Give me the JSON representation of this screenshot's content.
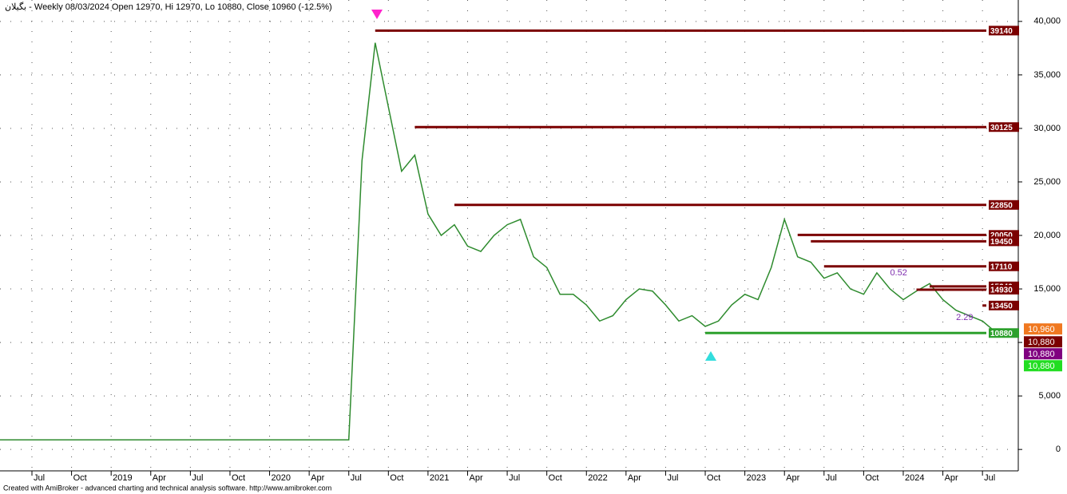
{
  "chart_data": {
    "type": "line",
    "title": "بگیلان - Weekly 08/03/2024 Open 12970, Hi 12970, Lo 10880, Close 10960 (-12.5%)",
    "footer": "Created with AmiBroker - advanced charting and technical analysis software. http://www.amibroker.com",
    "series": [
      {
        "name": "Close",
        "color": "#2e8b2e",
        "x": [
          "2018-04",
          "2018-05",
          "2018-06",
          "2018-07",
          "2018-08",
          "2018-09",
          "2018-10",
          "2018-11",
          "2018-12",
          "2019-01",
          "2019-02",
          "2019-03",
          "2019-04",
          "2019-05",
          "2019-06",
          "2019-07",
          "2019-08",
          "2019-09",
          "2019-10",
          "2019-11",
          "2019-12",
          "2020-01",
          "2020-02",
          "2020-03",
          "2020-04",
          "2020-05",
          "2020-06",
          "2020-07",
          "2020-08",
          "2020-09",
          "2020-10",
          "2020-11",
          "2020-12",
          "2021-01",
          "2021-02",
          "2021-03",
          "2021-04",
          "2021-05",
          "2021-06",
          "2021-07",
          "2021-08",
          "2021-09",
          "2021-10",
          "2021-11",
          "2021-12",
          "2022-01",
          "2022-02",
          "2022-03",
          "2022-04",
          "2022-05",
          "2022-06",
          "2022-07",
          "2022-08",
          "2022-09",
          "2022-10",
          "2022-11",
          "2022-12",
          "2023-01",
          "2023-02",
          "2023-03",
          "2023-04",
          "2023-05",
          "2023-06",
          "2023-07",
          "2023-08",
          "2023-09",
          "2023-10",
          "2023-11",
          "2023-12",
          "2024-01",
          "2024-02",
          "2024-03",
          "2024-04",
          "2024-05",
          "2024-06",
          "2024-07",
          "2024-08"
        ],
        "values": [
          900,
          900,
          900,
          900,
          900,
          900,
          900,
          900,
          900,
          900,
          900,
          900,
          900,
          900,
          900,
          900,
          900,
          900,
          900,
          900,
          900,
          900,
          900,
          900,
          900,
          900,
          900,
          900,
          27000,
          38000,
          32000,
          26000,
          27500,
          22000,
          20000,
          21000,
          19000,
          18500,
          20000,
          21000,
          21500,
          18000,
          17000,
          14500,
          14500,
          13500,
          12000,
          12500,
          14000,
          15000,
          14800,
          13500,
          12000,
          12500,
          11500,
          12000,
          13500,
          14500,
          14000,
          17000,
          21500,
          18000,
          17500,
          16000,
          16500,
          15000,
          14500,
          16500,
          15000,
          14000,
          14800,
          15500,
          14000,
          13000,
          12500,
          12000,
          10960
        ]
      }
    ],
    "ylim": [
      -2000,
      42000
    ],
    "yticks": [
      0,
      {
        "value": 5000,
        "label": "5,000"
      },
      {
        "value": 10000,
        "label": "10,000"
      },
      {
        "value": 15000,
        "label": "15,000"
      },
      {
        "value": 20000,
        "label": "20,000"
      },
      {
        "value": 25000,
        "label": "25,000"
      },
      {
        "value": 30000,
        "label": "30,000"
      },
      {
        "value": 35000,
        "label": "35,000"
      },
      {
        "value": 40000,
        "label": "40,000"
      }
    ],
    "xlim": [
      "2018-04",
      "2024-10"
    ],
    "xticks": [
      {
        "value": "2018-07",
        "label": "Jul"
      },
      {
        "value": "2018-10",
        "label": "Oct"
      },
      {
        "value": "2019-01",
        "label": "2019"
      },
      {
        "value": "2019-04",
        "label": "Apr"
      },
      {
        "value": "2019-07",
        "label": "Jul"
      },
      {
        "value": "2019-10",
        "label": "Oct"
      },
      {
        "value": "2020-01",
        "label": "2020"
      },
      {
        "value": "2020-04",
        "label": "Apr"
      },
      {
        "value": "2020-07",
        "label": "Jul"
      },
      {
        "value": "2020-10",
        "label": "Oct"
      },
      {
        "value": "2021-01",
        "label": "2021"
      },
      {
        "value": "2021-04",
        "label": "Apr"
      },
      {
        "value": "2021-07",
        "label": "Jul"
      },
      {
        "value": "2021-10",
        "label": "Oct"
      },
      {
        "value": "2022-01",
        "label": "2022"
      },
      {
        "value": "2022-04",
        "label": "Apr"
      },
      {
        "value": "2022-07",
        "label": "Jul"
      },
      {
        "value": "2022-10",
        "label": "Oct"
      },
      {
        "value": "2023-01",
        "label": "2023"
      },
      {
        "value": "2023-04",
        "label": "Apr"
      },
      {
        "value": "2023-07",
        "label": "Jul"
      },
      {
        "value": "2023-10",
        "label": "Oct"
      },
      {
        "value": "2024-01",
        "label": "2024"
      },
      {
        "value": "2024-04",
        "label": "Apr"
      },
      {
        "value": "2024-07",
        "label": "Jul"
      }
    ],
    "grid": true,
    "levels": [
      {
        "value": 39140,
        "start": "2020-09",
        "color": "#7b0000"
      },
      {
        "value": 30125,
        "start": "2020-12",
        "color": "#7b0000"
      },
      {
        "value": 22850,
        "start": "2021-03",
        "color": "#7b0000"
      },
      {
        "value": 20050,
        "start": "2023-05",
        "color": "#7b0000"
      },
      {
        "value": 19450,
        "start": "2023-06",
        "color": "#7b0000"
      },
      {
        "value": 17110,
        "start": "2023-07",
        "color": "#7b0000"
      },
      {
        "value": 15240,
        "start": "2024-03",
        "color": "#7b0000"
      },
      {
        "value": 14930,
        "start": "2024-02",
        "color": "#7b0000"
      },
      {
        "value": 13450,
        "start": "2024-07",
        "color": "#7b0000"
      },
      {
        "value": 10880,
        "start": "2022-10",
        "color": "#2ca02c"
      }
    ],
    "price_tags": [
      {
        "value": 10960,
        "label": "10,960",
        "color": "#f07820"
      },
      {
        "value": 10880,
        "label": "10,880",
        "color": "#7b0000"
      },
      {
        "value": 10880,
        "label": "10,880",
        "color": "#800080"
      },
      {
        "value": 10880,
        "label": "10,880",
        "color": "#22dd22"
      }
    ],
    "annotations": [
      {
        "text": "0.52",
        "x": "2023-12",
        "y": 16500
      },
      {
        "text": "2.29",
        "x": "2024-05",
        "y": 12300
      }
    ]
  }
}
